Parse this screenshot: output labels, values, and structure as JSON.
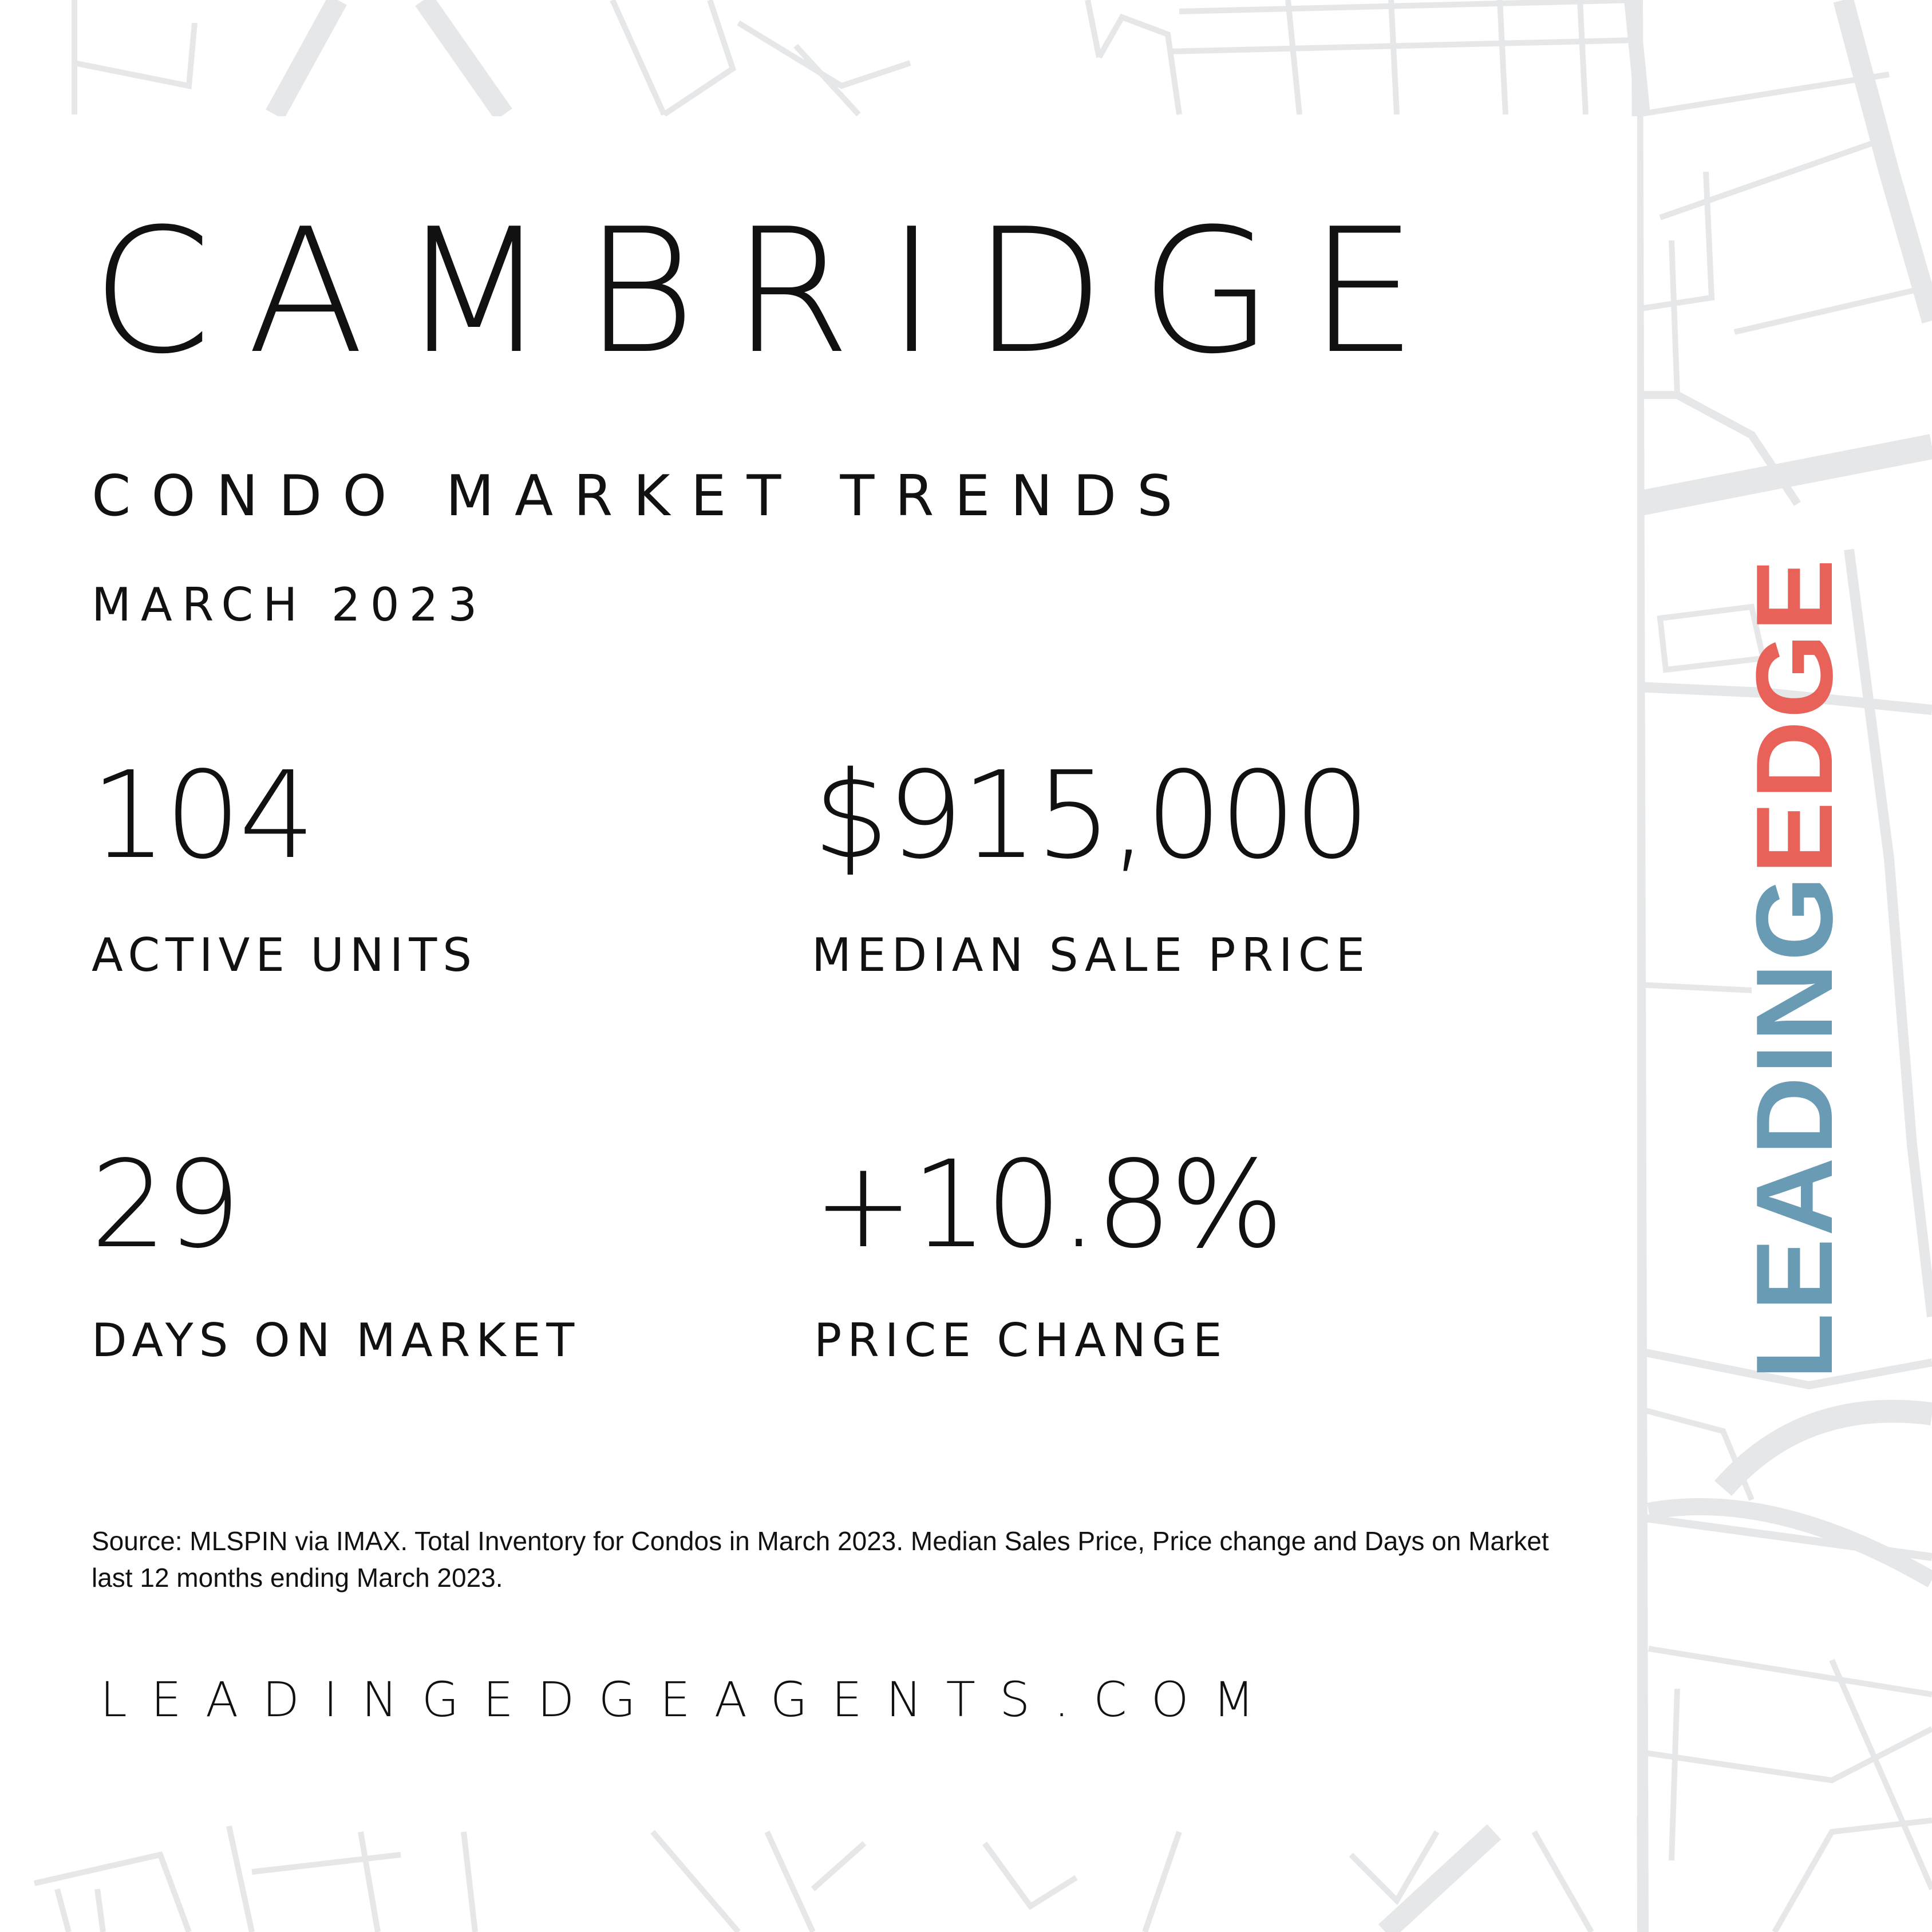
{
  "title": "CAMBRIDGE",
  "subtitle": "CONDO MARKET TRENDS",
  "date": "MARCH 2023",
  "stats": [
    {
      "value": "104",
      "label": "ACTIVE UNITS"
    },
    {
      "value": "$915,000",
      "label": "MEDIAN SALE PRICE"
    },
    {
      "value": "29",
      "label": "DAYS ON MARKET"
    },
    {
      "value": "+10.8%",
      "label": "PRICE CHANGE"
    }
  ],
  "source": "Source: MLSPIN via IMAX. Total Inventory for Condos in March 2023. Median Sales Price, Price change and Days on Market last 12 months ending March 2023.",
  "website": "LEADINGEDGEAGENTS.COM",
  "logo": {
    "part1": "LEADING",
    "part2": "EDGE",
    "color1": "#6a9bb5",
    "color2": "#e8625a"
  },
  "map_color": "#e6e7e9"
}
